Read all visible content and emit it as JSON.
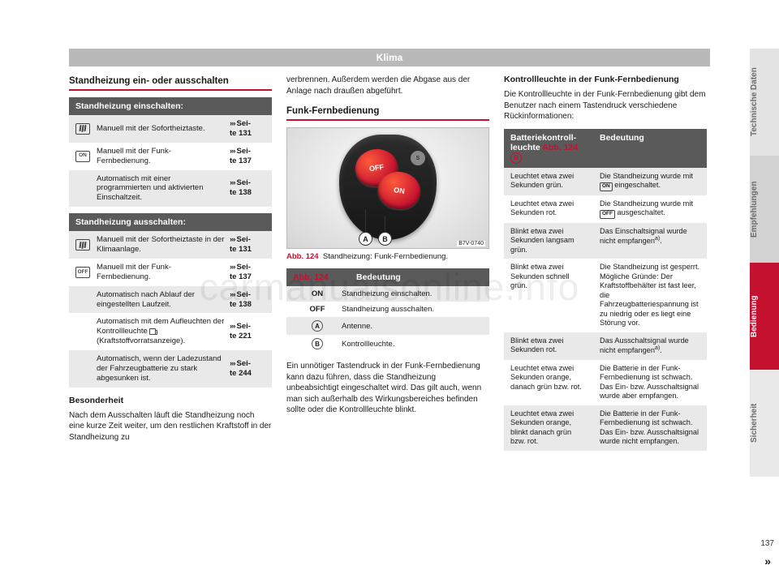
{
  "watermark": "carmanualsonline.info",
  "header": "Klima",
  "page_number": "137",
  "continue_mark": "»",
  "side_tabs": [
    "Technische Daten",
    "Empfehlungen",
    "Bedienung",
    "Sicherheit"
  ],
  "col1": {
    "section_title": "Standheizung ein- oder ausschalten",
    "table_on": {
      "head": "Standheizung einschalten:",
      "rows": [
        {
          "icon": "heat",
          "desc": "Manuell mit der Sofortheiztaste.",
          "page_prefix": "Sei-",
          "page": "te 131"
        },
        {
          "icon": "ON",
          "desc": "Manuell mit der Funk-Fernbedienung.",
          "page_prefix": "Sei-",
          "page": "te 137"
        },
        {
          "icon": "",
          "desc": "Automatisch mit einer programmierten und aktivierten Einschaltzeit.",
          "page_prefix": "Sei-",
          "page": "te 138"
        }
      ]
    },
    "table_off": {
      "head": "Standheizung ausschalten:",
      "rows": [
        {
          "icon": "heat",
          "desc": "Manuell mit der Sofortheiztaste in der Klimaanlage.",
          "page_prefix": "Sei-",
          "page": "te 131"
        },
        {
          "icon": "OFF",
          "desc": "Manuell mit der Funk-Fernbedienung.",
          "page_prefix": "Sei-",
          "page": "te 137"
        },
        {
          "icon": "",
          "desc": "Automatisch nach Ablauf der eingestellten Laufzeit.",
          "page_prefix": "Sei-",
          "page": "te 138"
        },
        {
          "icon": "",
          "desc_html": "Automatisch mit dem Aufleuchten der Kontrollleuchte <fuel> (Kraftstoffvorratsanzeige).",
          "page_prefix": "Sei-",
          "page": "te 221"
        },
        {
          "icon": "",
          "desc": "Automatisch, wenn der Ladezustand der Fahrzeugbatterie zu stark abgesunken ist.",
          "page_prefix": "Sei-",
          "page": "te 244"
        }
      ]
    },
    "sub_head": "Besonderheit",
    "paragraph": "Nach dem Ausschalten läuft die Standheizung noch eine kurze Zeit weiter, um den restlichen Kraftstoff in der Standheizung zu"
  },
  "col2": {
    "top_paragraph": "verbrennen. Außerdem werden die Abgase aus der Anlage nach draußen abgeführt.",
    "section_title": "Funk-Fernbedienung",
    "figure": {
      "btn_off": "OFF",
      "btn_on": "ON",
      "code": "B7V-0740",
      "callout_A": "A",
      "callout_B": "B",
      "caption_ref": "Abb. 124",
      "caption_text": "Standheizung: Funk-Fernbedienung."
    },
    "table": {
      "head_ref": "Abb. 124",
      "head_meaning": "Bedeutung",
      "rows": [
        {
          "k": "ON",
          "v": "Standheizung einschalten."
        },
        {
          "k": "OFF",
          "v": "Standheizung ausschalten."
        },
        {
          "k": "A",
          "circle": true,
          "v": "Antenne."
        },
        {
          "k": "B",
          "circle": true,
          "v": "Kontrollleuchte."
        }
      ]
    },
    "paragraph": "Ein unnötiger Tastendruck in der Funk-Fernbedienung kann dazu führen, dass die Standheizung unbeabsichtigt eingeschaltet wird. Das gilt auch, wenn man sich außerhalb des Wirkungsbereiches befinden sollte oder die Kontrollleuchte blinkt."
  },
  "col3": {
    "sub_head": "Kontrollleuchte in der Funk-Fernbedienung",
    "intro": "Die Kontrollleuchte in der Funk-Fernbedienung gibt dem Benutzer nach einem Tastendruck verschiedene Rückinformationen:",
    "table": {
      "head_c1_l1": "Batteriekontroll-",
      "head_c1_l2": "leuchte ",
      "head_c1_ref": "Abb. 124",
      "head_c1_circ": "B",
      "head_c2": "Bedeutung",
      "rows": [
        {
          "c1": "Leuchtet etwa zwei Sekunden grün.",
          "c2_html": "Die Standheizung wurde mit <on> eingeschaltet."
        },
        {
          "c1": "Leuchtet etwa zwei Sekunden rot.",
          "c2_html": "Die Standheizung wurde mit <off> ausgeschaltet."
        },
        {
          "c1": "Blinkt etwa zwei Sekunden langsam grün.",
          "c2_html": "Das Einschaltsignal wurde nicht empfangen<supa>."
        },
        {
          "c1": "Blinkt etwa zwei Sekunden schnell grün.",
          "c2_html": "Die Standheizung ist gesperrt. Mögliche Gründe: Der Kraftstoffbehälter ist fast leer, die Fahrzeugbatteriespannung ist zu niedrig oder es liegt eine Störung vor."
        },
        {
          "c1": "Blinkt etwa zwei Sekunden rot.",
          "c2_html": "Das Ausschaltsignal wurde nicht empfangen<supa>."
        },
        {
          "c1": "Leuchtet etwa zwei Sekunden orange, danach grün bzw. rot.",
          "c2_html": "Die Batterie in der Funk-Fernbedienung ist schwach. Das Ein- bzw. Ausschaltsignal wurde aber empfangen."
        },
        {
          "c1": "Leuchtet etwa zwei Sekunden orange, blinkt danach grün bzw. rot.",
          "c2_html": "Die Batterie in der Funk-Fernbedienung ist schwach. Das Ein- bzw. Ausschaltsignal wurde nicht empfangen."
        }
      ]
    }
  },
  "colors": {
    "accent": "#c4112f",
    "header_bar": "#b9b9b9",
    "table_head": "#5a5a5a",
    "row_alt": "#e9e9e9"
  }
}
